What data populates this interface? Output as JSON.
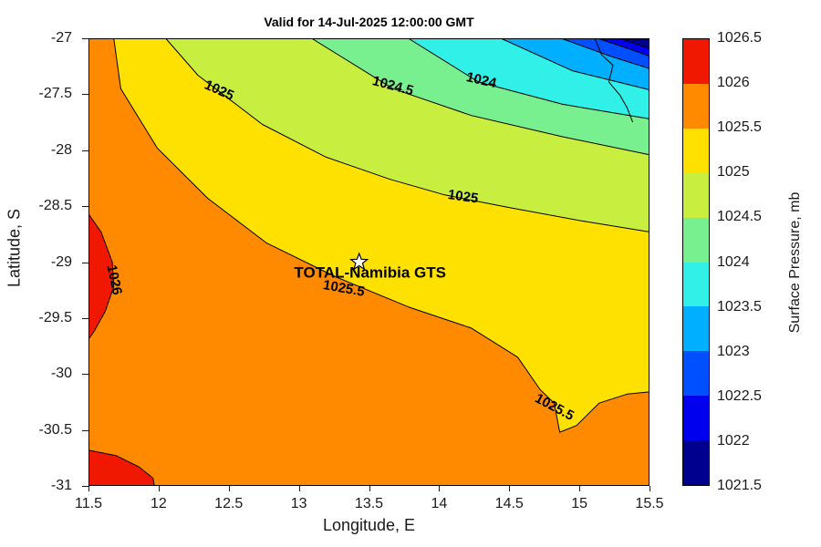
{
  "title": "Valid for 14-Jul-2025 12:00:00 GMT",
  "axes": {
    "x": {
      "label": "Longitude, E",
      "ticks": [
        "11.5",
        "12",
        "12.5",
        "13",
        "13.5",
        "14",
        "14.5",
        "15",
        "15.5"
      ]
    },
    "y": {
      "label": "Latitude, S",
      "ticks": [
        "-27",
        "-27.5",
        "-28",
        "-28.5",
        "-29",
        "-29.5",
        "-30",
        "-30.5",
        "-31"
      ]
    }
  },
  "colorbar": {
    "label": "Surface Pressure, mb",
    "ticks": [
      "1026.5",
      "1026",
      "1025.5",
      "1025",
      "1024.5",
      "1024",
      "1023.5",
      "1023",
      "1022.5",
      "1022",
      "1021.5"
    ],
    "colors": [
      "#f01800",
      "#ff8a00",
      "#ffe100",
      "#c8ef3f",
      "#78f08f",
      "#30f0e8",
      "#00afff",
      "#0050ff",
      "#0000ef",
      "#00008f"
    ]
  },
  "station": {
    "label": "TOTAL-Namibia GTS",
    "lon": 13.43,
    "lat": -29.0,
    "marker": "pentagram-star",
    "marker_fill": "#ffffff"
  },
  "chart_data": {
    "type": "heatmap",
    "style": "filled-contour-map",
    "title": "Valid for 14-Jul-2025 12:00:00 GMT",
    "xlabel": "Longitude, E",
    "ylabel": "Latitude, S",
    "zlabel": "Surface Pressure, mb",
    "xlim": [
      11.5,
      15.5
    ],
    "ylim": [
      -31,
      -27
    ],
    "zlim": [
      1021.5,
      1026.5
    ],
    "contour_interval": 0.5,
    "levels_mb": [
      1021.5,
      1022,
      1022.5,
      1023,
      1023.5,
      1024,
      1024.5,
      1025,
      1025.5,
      1026,
      1026.5
    ],
    "base_color": "#ffe100",
    "contours": [
      {
        "level": "1025.5",
        "fill": "#ff8a00",
        "close": "sw",
        "points": [
          [
            11.68,
            -27
          ],
          [
            11.73,
            -27.45
          ],
          [
            11.99,
            -27.98
          ],
          [
            12.35,
            -28.43
          ],
          [
            12.77,
            -28.83
          ],
          [
            13.26,
            -29.13
          ],
          [
            13.78,
            -29.4
          ],
          [
            14.23,
            -29.59
          ],
          [
            14.56,
            -29.85
          ],
          [
            14.72,
            -30.14
          ],
          [
            14.82,
            -30.26
          ],
          [
            14.86,
            -30.52
          ],
          [
            14.98,
            -30.46
          ],
          [
            15.14,
            -30.26
          ],
          [
            15.34,
            -30.18
          ],
          [
            15.5,
            -30.16
          ]
        ]
      },
      {
        "level": "1025",
        "fill": "#c8ef3f",
        "close": "ne",
        "points": [
          [
            12.05,
            -27
          ],
          [
            12.28,
            -27.33
          ],
          [
            12.74,
            -27.77
          ],
          [
            13.19,
            -28.06
          ],
          [
            13.65,
            -28.26
          ],
          [
            14.04,
            -28.4
          ],
          [
            14.49,
            -28.51
          ],
          [
            15.01,
            -28.63
          ],
          [
            15.5,
            -28.73
          ]
        ]
      },
      {
        "level": "1024.5",
        "fill": "#78f08f",
        "close": "ne",
        "points": [
          [
            13.09,
            -27
          ],
          [
            13.67,
            -27.45
          ],
          [
            14.23,
            -27.69
          ],
          [
            14.88,
            -27.88
          ],
          [
            15.5,
            -28.04
          ]
        ]
      },
      {
        "level": "1024",
        "fill": "#30f0e8",
        "close": "ne",
        "points": [
          [
            13.78,
            -27
          ],
          [
            14.28,
            -27.39
          ],
          [
            14.88,
            -27.59
          ],
          [
            15.5,
            -27.72
          ]
        ]
      },
      {
        "level": "1023.5",
        "fill": "#00afff",
        "close": "ne",
        "points": [
          [
            14.44,
            -27
          ],
          [
            14.95,
            -27.29
          ],
          [
            15.5,
            -27.46
          ]
        ]
      },
      {
        "level": "1023",
        "fill": "#0050ff",
        "close": "ne",
        "points": [
          [
            14.87,
            -27
          ],
          [
            15.22,
            -27.16
          ],
          [
            15.5,
            -27.27
          ]
        ]
      },
      {
        "level": "1022.5",
        "fill": "#0000ef",
        "close": "ne",
        "points": [
          [
            15.13,
            -27
          ],
          [
            15.39,
            -27.11
          ],
          [
            15.5,
            -27.16
          ]
        ]
      },
      {
        "level": "1022",
        "fill": "#00008f",
        "close": "ne",
        "points": [
          [
            15.29,
            -27
          ],
          [
            15.4,
            -27.05
          ],
          [
            15.5,
            -27.09
          ]
        ]
      },
      {
        "level": "1026",
        "fill": "#f01800",
        "close": "none",
        "points": [
          [
            11.5,
            -28.57
          ],
          [
            11.59,
            -28.73
          ],
          [
            11.67,
            -29
          ],
          [
            11.68,
            -29.22
          ],
          [
            11.62,
            -29.44
          ],
          [
            11.54,
            -29.62
          ],
          [
            11.5,
            -29.69
          ]
        ]
      },
      {
        "level": "1026",
        "fill": "#f01800",
        "close": "none",
        "points": [
          [
            11.5,
            -30.68
          ],
          [
            11.7,
            -30.73
          ],
          [
            11.86,
            -30.83
          ],
          [
            11.96,
            -30.93
          ],
          [
            11.97,
            -31
          ],
          [
            11.5,
            -31
          ]
        ]
      },
      {
        "level": "coastline",
        "fill": null,
        "close": "none",
        "points": [
          [
            15.11,
            -27
          ],
          [
            15.16,
            -27.15
          ],
          [
            15.24,
            -27.24
          ],
          [
            15.21,
            -27.39
          ],
          [
            15.29,
            -27.51
          ],
          [
            15.34,
            -27.62
          ],
          [
            15.38,
            -27.75
          ]
        ]
      }
    ],
    "contour_labels": [
      {
        "text": "1025",
        "lon": 12.43,
        "lat": -27.47,
        "rotation": 24
      },
      {
        "text": "1024.5",
        "lon": 13.67,
        "lat": -27.43,
        "rotation": 15
      },
      {
        "text": "1024",
        "lon": 14.3,
        "lat": -27.38,
        "rotation": 13
      },
      {
        "text": "1025",
        "lon": 14.17,
        "lat": -28.42,
        "rotation": 8
      },
      {
        "text": "1026",
        "lon": 11.68,
        "lat": -29.16,
        "rotation": 78
      },
      {
        "text": "1025.5",
        "lon": 13.32,
        "lat": -29.24,
        "rotation": 10
      },
      {
        "text": "1025.5",
        "lon": 14.82,
        "lat": -30.3,
        "rotation": 28
      }
    ]
  }
}
